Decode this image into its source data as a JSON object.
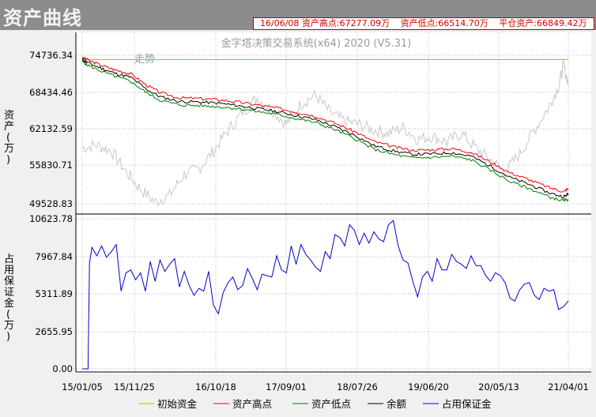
{
  "window": {
    "title": "资产曲线",
    "info": [
      "16/06/08 资产高点:67277.09万",
      "资产低点:66514.70万",
      "平仓资产:66849.42万"
    ],
    "system_name": "金字塔决策交易系统(x64) 2020 (V5.31)",
    "faint_label": "走势"
  },
  "chart_data": [
    {
      "type": "line",
      "title": "",
      "ylabel": "资产(万)",
      "x_ticks": [
        "15/01/05",
        "15/11/25",
        "16/10/18",
        "17/09/01",
        "18/07/26",
        "19/06/20",
        "20/05/13",
        "21/04/01"
      ],
      "y_ticks": [
        "74736.34",
        "68434.46",
        "62132.59",
        "55830.71",
        "49528.83"
      ],
      "ylim": [
        49528.83,
        74736.34
      ],
      "grid": true,
      "series": [
        {
          "name": "初始资金",
          "color": "#c8b400",
          "x": [
            0,
            1
          ],
          "values": [
            74000,
            74000
          ]
        },
        {
          "name": "资产高点",
          "color": "#ff0000",
          "x": [
            0,
            0.01,
            0.04,
            0.07,
            0.1,
            0.13,
            0.16,
            0.2,
            0.24,
            0.28,
            0.32,
            0.36,
            0.4,
            0.44,
            0.48,
            0.52,
            0.56,
            0.6,
            0.64,
            0.68,
            0.72,
            0.76,
            0.8,
            0.84,
            0.88,
            0.92,
            0.96,
            0.99,
            1.0
          ],
          "values": [
            74300,
            74000,
            73000,
            72200,
            71600,
            69800,
            68400,
            67500,
            67400,
            67200,
            66800,
            66300,
            65800,
            65100,
            64400,
            63200,
            61800,
            60100,
            59200,
            58600,
            58700,
            58900,
            58300,
            56600,
            54800,
            53600,
            52300,
            51600,
            52100
          ]
        },
        {
          "name": "资产低点",
          "color": "#008000",
          "x": [
            0,
            0.01,
            0.04,
            0.07,
            0.1,
            0.13,
            0.16,
            0.2,
            0.24,
            0.28,
            0.32,
            0.36,
            0.4,
            0.44,
            0.48,
            0.52,
            0.56,
            0.6,
            0.64,
            0.68,
            0.72,
            0.76,
            0.8,
            0.84,
            0.88,
            0.92,
            0.96,
            0.99,
            1.0
          ],
          "values": [
            73700,
            73100,
            72000,
            71100,
            70300,
            68500,
            67100,
            66300,
            66200,
            66000,
            65700,
            65200,
            64700,
            64000,
            63300,
            62100,
            60600,
            58800,
            57900,
            57300,
            57400,
            57600,
            57000,
            55200,
            53300,
            52100,
            50700,
            50000,
            50300
          ]
        },
        {
          "name": "余额",
          "color": "#000000",
          "x": [
            0,
            0.01,
            0.04,
            0.07,
            0.1,
            0.13,
            0.16,
            0.2,
            0.24,
            0.28,
            0.32,
            0.36,
            0.4,
            0.44,
            0.48,
            0.52,
            0.56,
            0.6,
            0.64,
            0.68,
            0.72,
            0.76,
            0.8,
            0.84,
            0.88,
            0.92,
            0.96,
            0.99,
            1.0
          ],
          "values": [
            74000,
            73500,
            72500,
            71600,
            71000,
            69100,
            67700,
            66900,
            66800,
            66600,
            66200,
            65700,
            65200,
            64500,
            63800,
            62600,
            61200,
            59400,
            58500,
            57900,
            58000,
            58200,
            57600,
            55900,
            54000,
            52800,
            51400,
            50700,
            51200
          ]
        },
        {
          "name": "走势",
          "color": "#c8c8c8",
          "x": [
            0,
            0.03,
            0.06,
            0.09,
            0.12,
            0.15,
            0.18,
            0.21,
            0.24,
            0.27,
            0.3,
            0.33,
            0.36,
            0.39,
            0.42,
            0.45,
            0.48,
            0.51,
            0.54,
            0.57,
            0.6,
            0.63,
            0.66,
            0.69,
            0.72,
            0.75,
            0.78,
            0.81,
            0.84,
            0.87,
            0.9,
            0.93,
            0.96,
            0.98,
            0.99,
            1.0
          ],
          "values": [
            59000,
            59500,
            58500,
            55000,
            52000,
            49800,
            51000,
            54500,
            55500,
            58500,
            62000,
            65000,
            67500,
            65500,
            63000,
            66500,
            68000,
            65000,
            63500,
            63000,
            62000,
            61500,
            62500,
            60500,
            61000,
            60000,
            61500,
            59000,
            57000,
            55000,
            58000,
            62000,
            66000,
            69500,
            73000,
            70000
          ]
        }
      ]
    },
    {
      "type": "line",
      "title": "",
      "ylabel": "占用保证金(万)",
      "y_ticks": [
        "10623.78",
        "7967.84",
        "5311.89",
        "2655.95",
        "0.00"
      ],
      "ylim": [
        0,
        10623.78
      ],
      "grid": true,
      "series": [
        {
          "name": "占用保证金",
          "color": "#0000cc",
          "x": [
            0,
            0.005,
            0.012,
            0.015,
            0.02,
            0.03,
            0.04,
            0.05,
            0.06,
            0.07,
            0.08,
            0.09,
            0.1,
            0.11,
            0.12,
            0.13,
            0.14,
            0.15,
            0.16,
            0.17,
            0.18,
            0.19,
            0.2,
            0.21,
            0.22,
            0.23,
            0.24,
            0.25,
            0.26,
            0.27,
            0.28,
            0.29,
            0.3,
            0.31,
            0.32,
            0.33,
            0.34,
            0.35,
            0.36,
            0.37,
            0.38,
            0.39,
            0.4,
            0.41,
            0.42,
            0.43,
            0.44,
            0.45,
            0.46,
            0.47,
            0.48,
            0.49,
            0.5,
            0.51,
            0.52,
            0.53,
            0.54,
            0.55,
            0.56,
            0.57,
            0.58,
            0.59,
            0.6,
            0.61,
            0.62,
            0.63,
            0.64,
            0.65,
            0.66,
            0.67,
            0.68,
            0.69,
            0.7,
            0.71,
            0.72,
            0.73,
            0.74,
            0.75,
            0.76,
            0.77,
            0.78,
            0.79,
            0.8,
            0.81,
            0.82,
            0.83,
            0.84,
            0.85,
            0.86,
            0.87,
            0.88,
            0.89,
            0.9,
            0.91,
            0.92,
            0.93,
            0.94,
            0.95,
            0.96,
            0.97,
            0.98,
            0.99,
            1.0
          ],
          "values": [
            0,
            0,
            0,
            7500,
            8600,
            8000,
            8700,
            7900,
            8300,
            8800,
            5500,
            6800,
            7000,
            6300,
            6800,
            5500,
            7600,
            6200,
            7700,
            6900,
            7400,
            7800,
            5800,
            6900,
            5900,
            5200,
            5700,
            5500,
            6900,
            4500,
            3900,
            5400,
            6100,
            6500,
            5600,
            5900,
            7100,
            6400,
            5600,
            6700,
            6600,
            6500,
            8000,
            7000,
            6800,
            8700,
            7400,
            8800,
            8100,
            7700,
            7200,
            6900,
            8300,
            7800,
            9500,
            9300,
            8700,
            10200,
            9800,
            8800,
            9600,
            8900,
            9700,
            9200,
            9000,
            10200,
            10500,
            8700,
            7700,
            7500,
            6200,
            5100,
            6500,
            6900,
            6200,
            7800,
            7000,
            7000,
            8100,
            7600,
            7400,
            7100,
            8000,
            7300,
            7300,
            6600,
            6200,
            6800,
            6600,
            6100,
            5000,
            4800,
            5600,
            6000,
            6100,
            5200,
            4900,
            5700,
            5500,
            5600,
            4200,
            4400,
            4800
          ]
        }
      ]
    }
  ],
  "legend": [
    "初始资金",
    "资产高点",
    "资产低点",
    "余额",
    "占用保证金"
  ]
}
